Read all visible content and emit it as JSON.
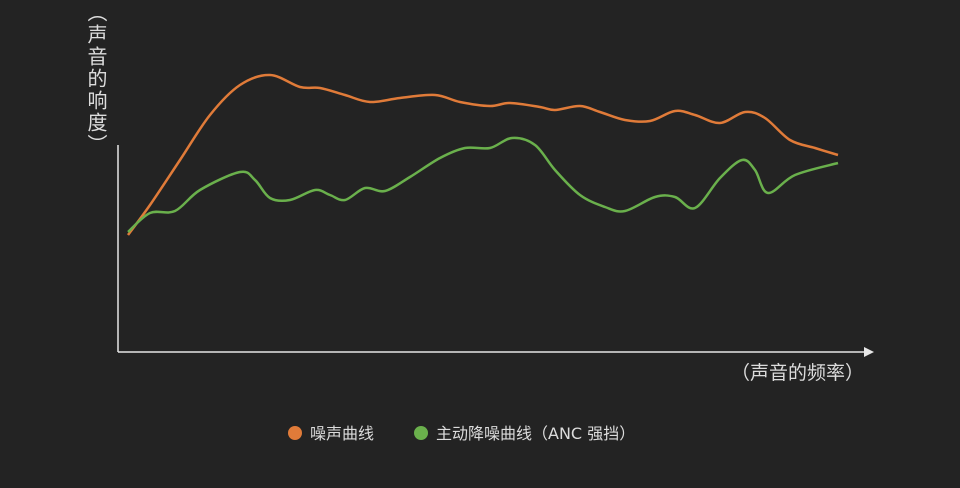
{
  "chart_data": {
    "type": "line",
    "xlabel": "（声音的频率）",
    "ylabel": "（声音的响度）",
    "xlim": [
      0,
      754
    ],
    "ylim": [
      0,
      342
    ],
    "series": [
      {
        "name": "噪声曲线",
        "color": "#e07b39",
        "x": [
          10,
          32,
          62,
          92,
          122,
          152,
          182,
          202,
          227,
          252,
          282,
          317,
          342,
          372,
          392,
          422,
          437,
          462,
          482,
          507,
          532,
          557,
          577,
          602,
          627,
          647,
          672,
          697,
          720
        ],
        "values": [
          117,
          147,
          192,
          237,
          267,
          277,
          265,
          264,
          257,
          250,
          254,
          257,
          250,
          246,
          249,
          245,
          242,
          246,
          240,
          232,
          231,
          241,
          237,
          229,
          240,
          234,
          212,
          204,
          197
        ]
      },
      {
        "name": "主动降噪曲线（ANC 强挡）",
        "color": "#6ab04c",
        "x": [
          10,
          32,
          57,
          82,
          122,
          137,
          152,
          172,
          197,
          212,
          227,
          247,
          267,
          292,
          322,
          347,
          372,
          394,
          417,
          437,
          462,
          487,
          507,
          537,
          557,
          577,
          602,
          624,
          637,
          650,
          677,
          720
        ],
        "values": [
          120,
          139,
          141,
          162,
          180,
          172,
          154,
          152,
          162,
          157,
          152,
          164,
          161,
          175,
          194,
          204,
          204,
          214,
          207,
          182,
          157,
          145,
          141,
          155,
          155,
          144,
          174,
          192,
          182,
          159,
          177,
          189
        ]
      }
    ]
  }
}
